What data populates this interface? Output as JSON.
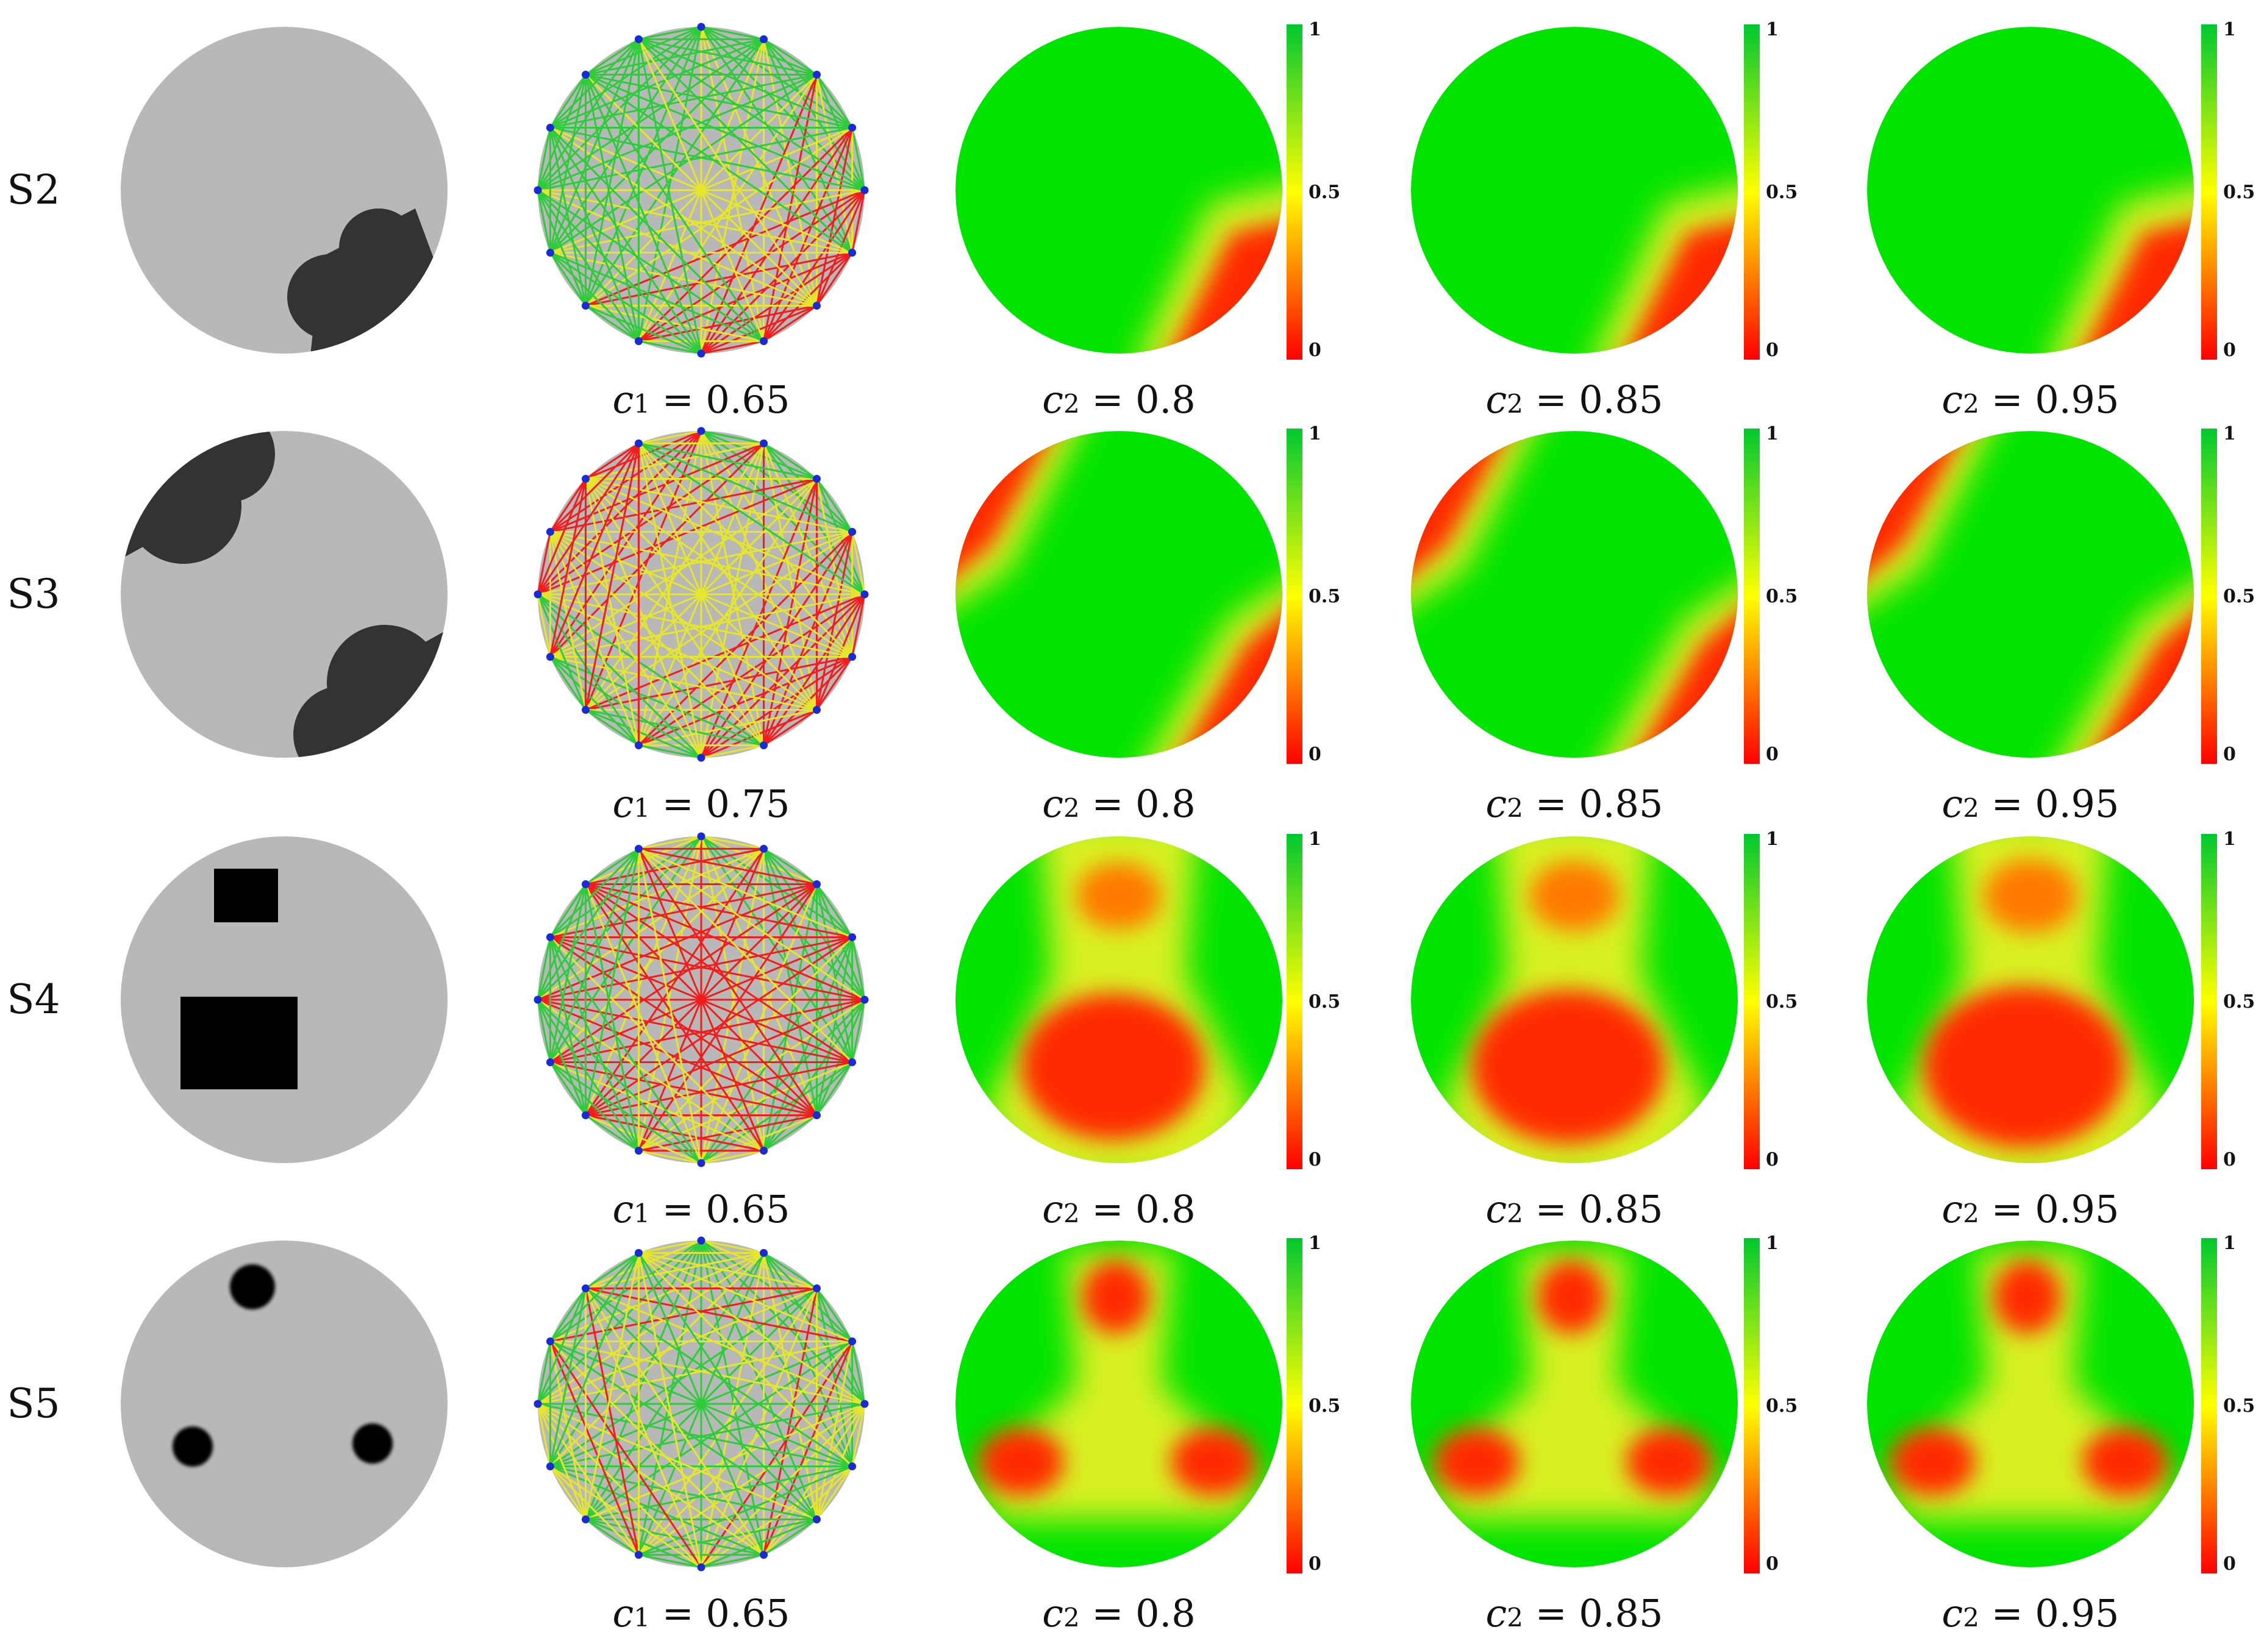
{
  "colors": {
    "background_gray": "#b8b8b8",
    "inclusion_dark": "#333333",
    "inclusion_black": "#000000",
    "electrode": "#1a2bd6",
    "scale_high": "#00e400",
    "scale_mid": "#ffff00",
    "scale_low": "#ff0000"
  },
  "colorbar": {
    "top_label": "1",
    "mid_label": "0.5",
    "bottom_label": "0"
  },
  "rows": [
    {
      "label": "S2",
      "c1": {
        "var": "c",
        "sub": "1",
        "text": " = 0.65"
      },
      "c2": [
        {
          "var": "c",
          "sub": "2",
          "text": " = 0.8"
        },
        {
          "var": "c",
          "sub": "2",
          "text": " = 0.85"
        },
        {
          "var": "c",
          "sub": "2",
          "text": " = 0.95"
        }
      ]
    },
    {
      "label": "S3",
      "c1": {
        "var": "c",
        "sub": "1",
        "text": " = 0.75"
      },
      "c2": [
        {
          "var": "c",
          "sub": "2",
          "text": " = 0.8"
        },
        {
          "var": "c",
          "sub": "2",
          "text": " = 0.85"
        },
        {
          "var": "c",
          "sub": "2",
          "text": " = 0.95"
        }
      ]
    },
    {
      "label": "S4",
      "c1": {
        "var": "c",
        "sub": "1",
        "text": " = 0.65"
      },
      "c2": [
        {
          "var": "c",
          "sub": "2",
          "text": " = 0.8"
        },
        {
          "var": "c",
          "sub": "2",
          "text": " = 0.85"
        },
        {
          "var": "c",
          "sub": "2",
          "text": " = 0.95"
        }
      ]
    },
    {
      "label": "S5",
      "c1": {
        "var": "c",
        "sub": "1",
        "text": " = 0.65"
      },
      "c2": [
        {
          "var": "c",
          "sub": "2",
          "text": " = 0.8"
        },
        {
          "var": "c",
          "sub": "2",
          "text": " = 0.85"
        },
        {
          "var": "c",
          "sub": "2",
          "text": " = 0.95"
        }
      ]
    }
  ]
}
